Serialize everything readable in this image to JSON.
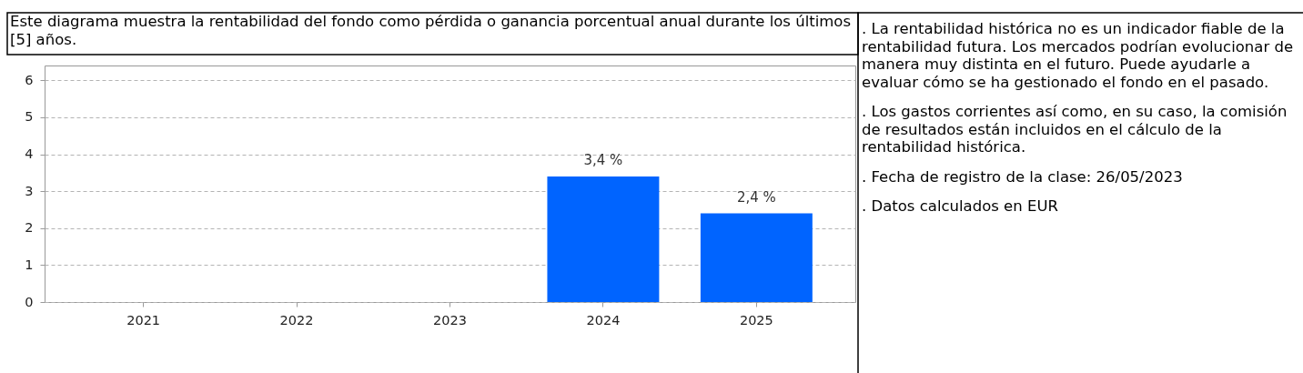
{
  "chart_data": {
    "type": "bar",
    "title": "Este diagrama muestra la rentabilidad del fondo como pérdida o ganancia porcentual anual durante los últimos [5] años.",
    "categories": [
      "2021",
      "2022",
      "2023",
      "2024",
      "2025"
    ],
    "values": [
      null,
      null,
      null,
      3.4,
      2.4
    ],
    "color": "#0064ff",
    "value_labels": [
      null,
      null,
      null,
      "3,4 %",
      "2,4 %"
    ],
    "ylim": [
      0,
      6.4
    ],
    "yticks": [
      0,
      1,
      2,
      3,
      4,
      5,
      6
    ],
    "grid": "y",
    "annotations": [
      ". La rentabilidad histórica no es un indicador fiable de la rentabilidad futura. Los mercados podrían evolucionar de manera muy distinta en el futuro. Puede ayudarle a evaluar cómo se ha gestionado el fondo en el pasado.",
      ". Los gastos corrientes así como, en su caso, la comisión de resultados están incluidos en el cálculo de la rentabilidad histórica.",
      ". Fecha de registro de la clase: 26/05/2023",
      ". Datos calculados en EUR"
    ]
  }
}
